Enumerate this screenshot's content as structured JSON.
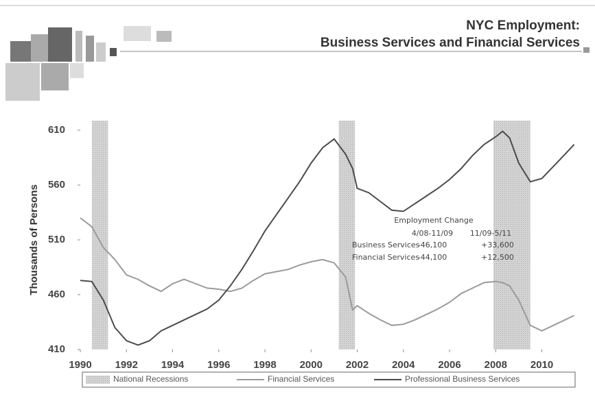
{
  "header": {
    "title": "NYC Employment:",
    "subtitle": "Business Services and Financial Services"
  },
  "chart_data": {
    "type": "line",
    "y_label": "Thousands of Persons",
    "x": [
      1990,
      1990.5,
      1991,
      1991.5,
      1992,
      1992.5,
      1993,
      1993.5,
      1994,
      1994.5,
      1995,
      1995.5,
      1996,
      1996.5,
      1997,
      1997.5,
      1998,
      1998.5,
      1999,
      1999.5,
      2000,
      2000.5,
      2001,
      2001.5,
      2001.8,
      2002,
      2002.5,
      2003,
      2003.5,
      2004,
      2004.5,
      2005,
      2005.5,
      2006,
      2006.5,
      2007,
      2007.5,
      2008,
      2008.3,
      2008.6,
      2009,
      2009.5,
      2010,
      2010.5,
      2011,
      2011.4
    ],
    "series": [
      {
        "name": "Financial Services",
        "color": "#9a9a9a",
        "values": [
          530,
          522,
          503,
          492,
          478,
          474,
          468,
          463,
          470,
          474,
          470,
          466,
          465,
          463,
          466,
          473,
          479,
          481,
          483,
          487,
          490,
          492,
          489,
          476,
          446,
          450,
          443,
          437,
          432,
          433,
          437,
          442,
          447,
          453,
          461,
          466,
          471,
          472,
          471,
          468,
          455,
          432,
          427,
          432,
          437,
          441
        ]
      },
      {
        "name": "Professional Business Services",
        "color": "#4a4a4a",
        "values": [
          473,
          472,
          455,
          430,
          418,
          414,
          418,
          427,
          432,
          437,
          442,
          447,
          455,
          468,
          483,
          500,
          518,
          533,
          548,
          563,
          580,
          594,
          602,
          588,
          575,
          557,
          553,
          545,
          537,
          536,
          543,
          550,
          557,
          565,
          575,
          587,
          597,
          604,
          609,
          603,
          580,
          563,
          566,
          577,
          588,
          597
        ]
      }
    ],
    "recessions": {
      "name": "National Recessions",
      "color": "#cfcfcf",
      "periods": [
        [
          1990.5,
          1991.2
        ],
        [
          2001.2,
          2001.9
        ],
        [
          2007.9,
          2009.5
        ]
      ]
    },
    "xlim": [
      1990,
      2011.5
    ],
    "xticks": [
      1990,
      1992,
      1994,
      1996,
      1998,
      2000,
      2002,
      2004,
      2006,
      2008,
      2010
    ],
    "ylim": [
      410,
      610
    ],
    "yticks": [
      410,
      460,
      510,
      560,
      610
    ],
    "annotation": {
      "title": "Employment Change",
      "columns": [
        "4/08-11/09",
        "11/09-5/11"
      ],
      "rows": [
        [
          "Business Services",
          "-46,100",
          "+33,600"
        ],
        [
          "Financial Services",
          "-44,100",
          "+12,500"
        ]
      ]
    }
  }
}
